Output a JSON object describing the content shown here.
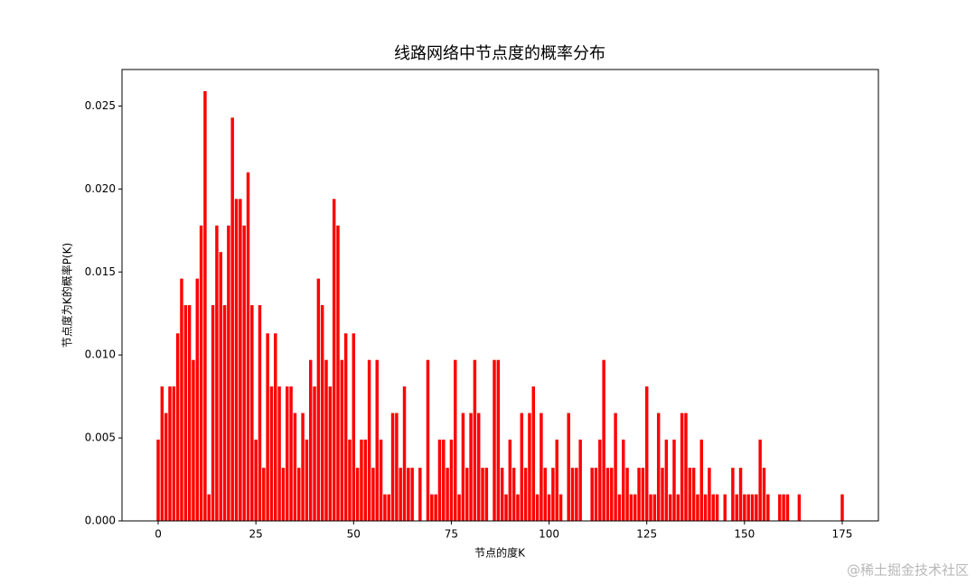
{
  "chart_data": {
    "type": "bar",
    "title": "线路网络中节点度的概率分布",
    "xlabel": "节点的度K",
    "ylabel": "节点度为K的概率P(K)",
    "color": "#ff0000",
    "x": [
      0,
      1,
      2,
      3,
      4,
      5,
      6,
      7,
      8,
      9,
      10,
      11,
      12,
      13,
      14,
      15,
      16,
      17,
      18,
      19,
      20,
      21,
      22,
      23,
      24,
      25,
      26,
      27,
      28,
      29,
      30,
      31,
      32,
      33,
      34,
      35,
      36,
      37,
      38,
      39,
      40,
      41,
      42,
      43,
      44,
      45,
      46,
      47,
      48,
      49,
      50,
      51,
      52,
      53,
      54,
      55,
      56,
      57,
      58,
      59,
      60,
      61,
      62,
      63,
      64,
      65,
      66,
      67,
      68,
      69,
      70,
      71,
      72,
      73,
      74,
      75,
      76,
      77,
      78,
      79,
      80,
      81,
      82,
      83,
      84,
      85,
      86,
      87,
      88,
      89,
      90,
      91,
      92,
      93,
      94,
      95,
      96,
      97,
      98,
      99,
      100,
      101,
      102,
      103,
      104,
      105,
      106,
      107,
      108,
      109,
      110,
      111,
      112,
      113,
      114,
      115,
      116,
      117,
      118,
      119,
      120,
      121,
      122,
      123,
      124,
      125,
      126,
      127,
      128,
      129,
      130,
      131,
      132,
      133,
      134,
      135,
      136,
      137,
      138,
      139,
      140,
      141,
      142,
      143,
      144,
      145,
      146,
      147,
      148,
      149,
      150,
      151,
      152,
      153,
      154,
      155,
      156,
      157,
      158,
      159,
      160,
      161,
      162,
      163,
      164,
      165,
      166,
      167,
      168,
      169,
      170,
      171,
      172,
      173,
      174,
      175
    ],
    "values": [
      0.0049,
      0.0081,
      0.0065,
      0.0081,
      0.0081,
      0.0113,
      0.0146,
      0.013,
      0.013,
      0.0097,
      0.0146,
      0.0178,
      0.0259,
      0.0016,
      0.013,
      0.0178,
      0.0162,
      0.013,
      0.0178,
      0.0243,
      0.0194,
      0.0194,
      0.0178,
      0.021,
      0.013,
      0.0049,
      0.013,
      0.0032,
      0.0113,
      0.0081,
      0.0113,
      0.0081,
      0.0032,
      0.0081,
      0.0081,
      0.0065,
      0.0032,
      0.0065,
      0.0049,
      0.0097,
      0.0081,
      0.0146,
      0.013,
      0.0097,
      0.0081,
      0.0194,
      0.0178,
      0.0097,
      0.0113,
      0.0049,
      0.0113,
      0.0032,
      0.0049,
      0.0049,
      0.0097,
      0.0032,
      0.0097,
      0.0049,
      0.0016,
      0.0016,
      0.0065,
      0.0065,
      0.0032,
      0.0081,
      0.0032,
      0.0032,
      0,
      0.0032,
      0,
      0.0097,
      0.0016,
      0.0016,
      0.0049,
      0.0049,
      0.0032,
      0.0049,
      0.0097,
      0.0016,
      0.0065,
      0.0032,
      0.0065,
      0.0097,
      0.0065,
      0.0032,
      0.0032,
      0,
      0.0097,
      0.0097,
      0.0032,
      0.0016,
      0.0049,
      0.0032,
      0.0016,
      0.0065,
      0.0032,
      0.0065,
      0.0081,
      0.0016,
      0.0065,
      0.0032,
      0.0016,
      0.0032,
      0.0049,
      0.0016,
      0,
      0.0065,
      0.0032,
      0.0032,
      0.0049,
      0,
      0,
      0.0032,
      0.0032,
      0.0049,
      0.0097,
      0.0032,
      0.0032,
      0.0065,
      0.0016,
      0.0049,
      0.0032,
      0.0016,
      0.0016,
      0.0032,
      0.0032,
      0.0081,
      0.0016,
      0.0016,
      0.0065,
      0.0032,
      0.0049,
      0.0016,
      0.0049,
      0.0016,
      0.0065,
      0.0065,
      0.0032,
      0.0032,
      0.0016,
      0.0049,
      0.0016,
      0.0032,
      0.0016,
      0.0016,
      0,
      0.0016,
      0,
      0.0032,
      0.0016,
      0.0032,
      0.0016,
      0.0016,
      0.0016,
      0.0016,
      0.0049,
      0.0032,
      0.0016,
      0,
      0,
      0.0016,
      0.0016,
      0.0016,
      0,
      0,
      0.0016,
      0,
      0,
      0,
      0,
      0,
      0,
      0,
      0,
      0,
      0,
      0.0016
    ],
    "xlim": [
      -9.25,
      184.25
    ],
    "xticks": [
      0,
      25,
      50,
      75,
      100,
      125,
      150,
      175
    ],
    "ylim": [
      0,
      0.0272
    ],
    "yticks": [
      {
        "value": 0,
        "label": "0.000"
      },
      {
        "value": 0.005,
        "label": "0.005"
      },
      {
        "value": 0.01,
        "label": "0.010"
      },
      {
        "value": 0.015,
        "label": "0.015"
      },
      {
        "value": 0.02,
        "label": "0.020"
      },
      {
        "value": 0.025,
        "label": "0.025"
      }
    ],
    "bar_width": 0.8
  },
  "watermark": "@稀土掘金技术社区"
}
